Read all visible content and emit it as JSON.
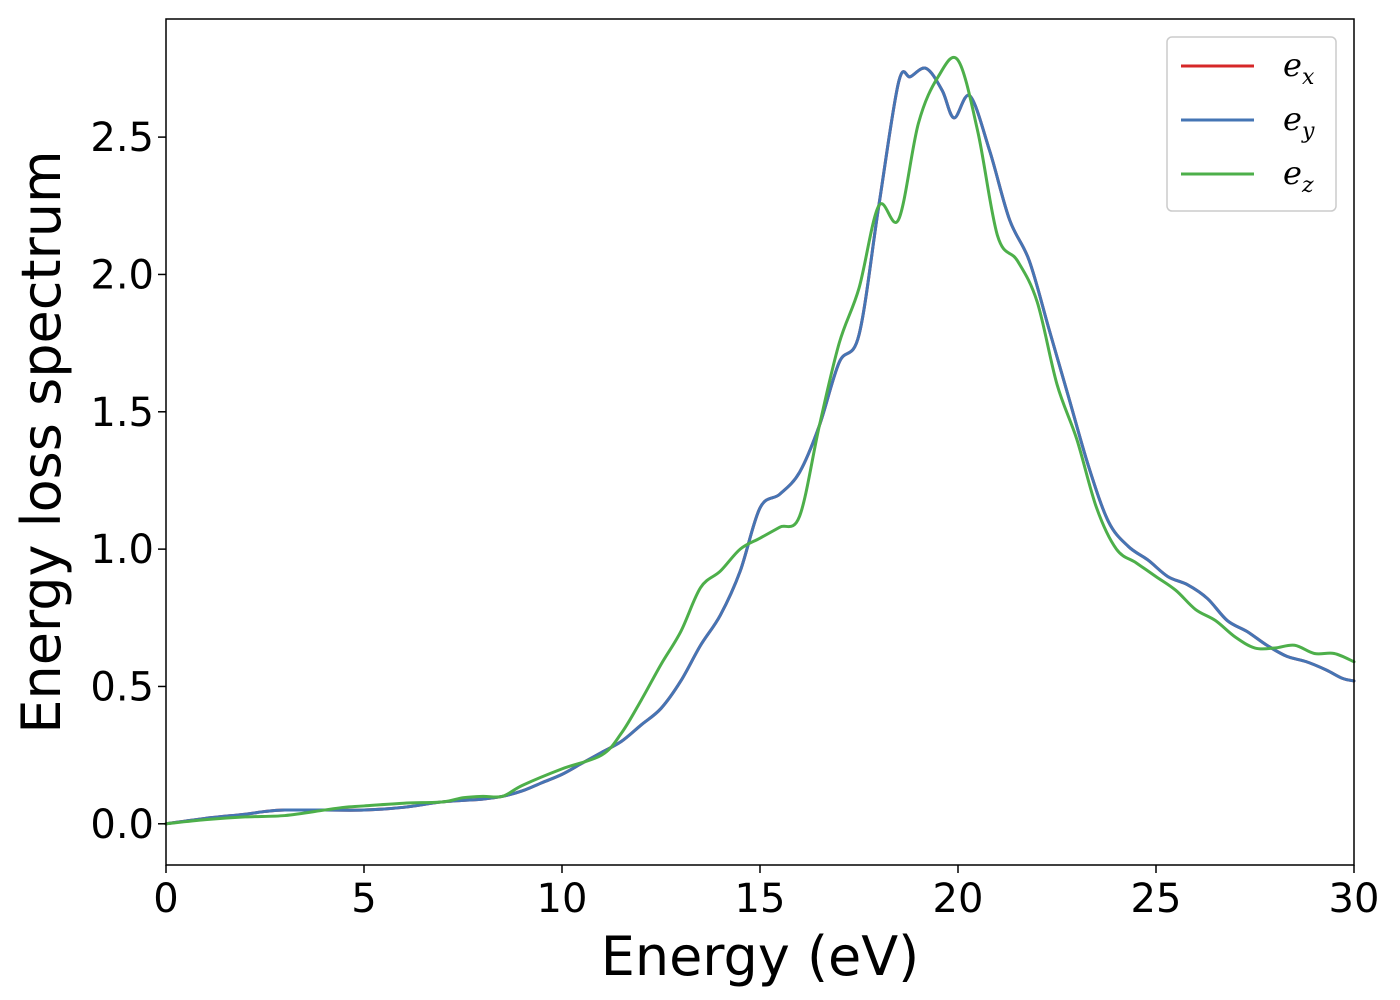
{
  "chart_data": {
    "type": "line",
    "title": "",
    "xlabel": "Energy (eV)",
    "ylabel": "Energy loss spectrum",
    "xlim": [
      0,
      30
    ],
    "ylim": [
      -0.15,
      2.93
    ],
    "xticks": [
      0,
      5,
      10,
      15,
      20,
      25,
      30
    ],
    "xtick_labels": [
      "0",
      "5",
      "10",
      "15",
      "20",
      "25",
      "30"
    ],
    "yticks": [
      0.0,
      0.5,
      1.0,
      1.5,
      2.0,
      2.5
    ],
    "ytick_labels": [
      "0.0",
      "0.5",
      "1.0",
      "1.5",
      "2.0",
      "2.5"
    ],
    "grid": false,
    "legend_position": "top-right",
    "series": [
      {
        "name": "e_x",
        "label_base": "e",
        "label_sub": "x",
        "color": "#d62728",
        "x": [
          0,
          1,
          2,
          2.5,
          3,
          4,
          5,
          6,
          7,
          8,
          8.5,
          9,
          9.5,
          10,
          10.5,
          11,
          11.5,
          12,
          12.5,
          13,
          13.5,
          14,
          14.5,
          15,
          15.5,
          16,
          16.5,
          17,
          17.5,
          18,
          18.5,
          18.8,
          19.2,
          19.6,
          19.9,
          20.3,
          20.8,
          21.3,
          21.8,
          22.3,
          22.8,
          23.3,
          23.8,
          24.3,
          24.8,
          25.3,
          25.8,
          26.3,
          26.8,
          27.3,
          27.8,
          28.3,
          28.8,
          29.3,
          29.7,
          30
        ],
        "values": [
          0.0,
          0.02,
          0.035,
          0.045,
          0.05,
          0.05,
          0.05,
          0.06,
          0.08,
          0.09,
          0.1,
          0.12,
          0.15,
          0.18,
          0.22,
          0.26,
          0.3,
          0.36,
          0.42,
          0.52,
          0.65,
          0.76,
          0.92,
          1.15,
          1.2,
          1.28,
          1.45,
          1.68,
          1.78,
          2.25,
          2.7,
          2.72,
          2.75,
          2.67,
          2.57,
          2.65,
          2.45,
          2.2,
          2.05,
          1.8,
          1.55,
          1.3,
          1.1,
          1.01,
          0.96,
          0.9,
          0.87,
          0.82,
          0.74,
          0.7,
          0.65,
          0.61,
          0.59,
          0.56,
          0.53,
          0.52
        ]
      },
      {
        "name": "e_y",
        "label_base": "e",
        "label_sub": "y",
        "color": "#4575b4",
        "x": [
          0,
          1,
          2,
          2.5,
          3,
          4,
          5,
          6,
          7,
          8,
          8.5,
          9,
          9.5,
          10,
          10.5,
          11,
          11.5,
          12,
          12.5,
          13,
          13.5,
          14,
          14.5,
          15,
          15.5,
          16,
          16.5,
          17,
          17.5,
          18,
          18.5,
          18.8,
          19.2,
          19.6,
          19.9,
          20.3,
          20.8,
          21.3,
          21.8,
          22.3,
          22.8,
          23.3,
          23.8,
          24.3,
          24.8,
          25.3,
          25.8,
          26.3,
          26.8,
          27.3,
          27.8,
          28.3,
          28.8,
          29.3,
          29.7,
          30
        ],
        "values": [
          0.0,
          0.02,
          0.035,
          0.045,
          0.05,
          0.05,
          0.05,
          0.06,
          0.08,
          0.09,
          0.1,
          0.12,
          0.15,
          0.18,
          0.22,
          0.26,
          0.3,
          0.36,
          0.42,
          0.52,
          0.65,
          0.76,
          0.92,
          1.15,
          1.2,
          1.28,
          1.45,
          1.68,
          1.78,
          2.25,
          2.7,
          2.72,
          2.75,
          2.67,
          2.57,
          2.65,
          2.45,
          2.2,
          2.05,
          1.8,
          1.55,
          1.3,
          1.1,
          1.01,
          0.96,
          0.9,
          0.87,
          0.82,
          0.74,
          0.7,
          0.65,
          0.61,
          0.59,
          0.56,
          0.53,
          0.52
        ]
      },
      {
        "name": "e_z",
        "label_base": "e",
        "label_sub": "z",
        "color": "#4daf4a",
        "x": [
          0,
          1,
          2,
          3,
          4,
          4.5,
          5,
          6,
          7,
          7.5,
          8,
          8.5,
          9,
          10,
          11,
          11.5,
          12,
          12.5,
          13,
          13.5,
          14,
          14.5,
          15,
          15.5,
          16,
          16.5,
          17,
          17.5,
          18,
          18.5,
          19,
          19.5,
          20,
          20.5,
          21,
          21.5,
          22,
          22.5,
          23,
          23.5,
          24,
          24.5,
          25,
          25.5,
          26,
          26.5,
          27,
          27.5,
          28,
          28.5,
          29,
          29.5,
          30
        ],
        "values": [
          0.0,
          0.015,
          0.025,
          0.03,
          0.05,
          0.06,
          0.065,
          0.075,
          0.08,
          0.095,
          0.1,
          0.1,
          0.14,
          0.2,
          0.25,
          0.33,
          0.45,
          0.58,
          0.7,
          0.86,
          0.92,
          1.0,
          1.04,
          1.08,
          1.12,
          1.45,
          1.75,
          1.95,
          2.25,
          2.2,
          2.55,
          2.72,
          2.78,
          2.52,
          2.14,
          2.05,
          1.9,
          1.6,
          1.4,
          1.15,
          1.0,
          0.95,
          0.9,
          0.85,
          0.78,
          0.74,
          0.68,
          0.64,
          0.64,
          0.65,
          0.62,
          0.62,
          0.59
        ]
      }
    ]
  }
}
